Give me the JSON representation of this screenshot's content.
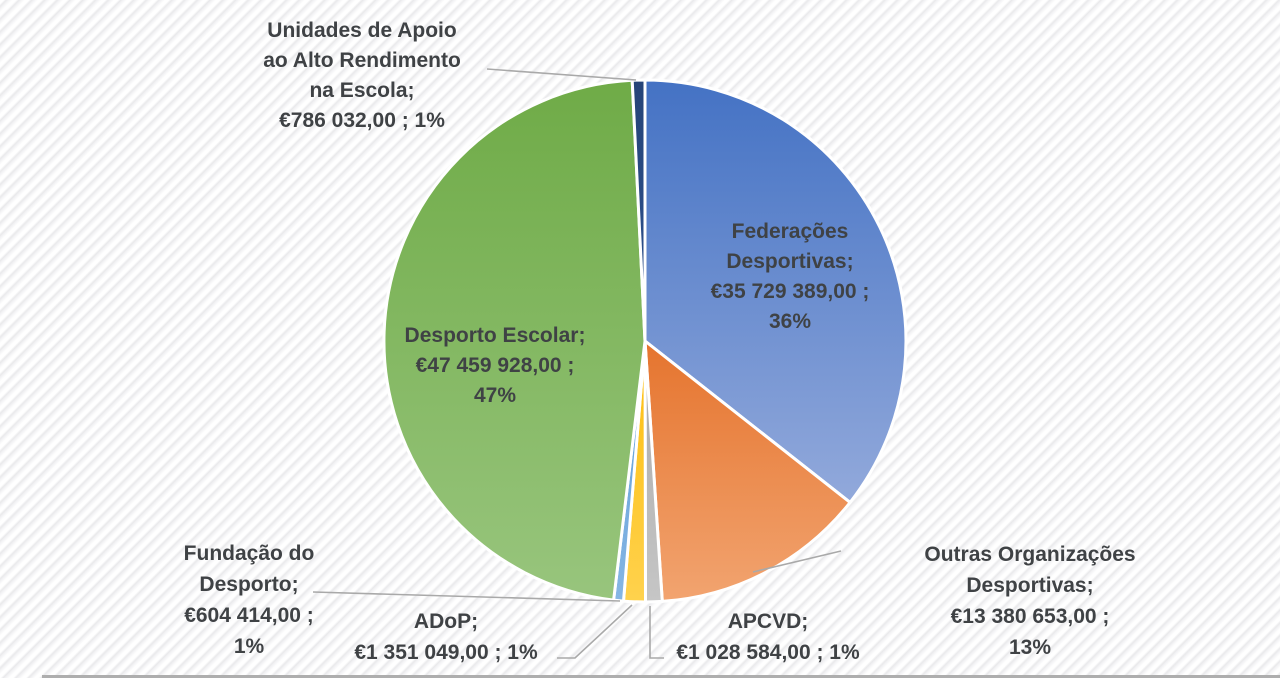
{
  "background": {
    "pattern": "diagonal-hatch",
    "stripe_light": "#ffffff",
    "stripe_dark": "#e9e9eb"
  },
  "text_color": "#3f4245",
  "leader_line_color": "#a9a9a9",
  "chart_data": {
    "type": "pie",
    "title": "",
    "legend": "none",
    "start_angle_deg": 0,
    "direction": "clockwise",
    "slice_separator_color": "#ffffff",
    "slices": [
      {
        "slug": "federacoes-desportivas",
        "name": "Federações Desportivas",
        "value": 35729389,
        "value_label": "€35 729 389,00",
        "pct": 36,
        "pct_label": "36%",
        "label_placement": "inside",
        "label_lines": [
          "Federações",
          "Desportivas;",
          "€35 729 389,00 ;",
          "36%"
        ],
        "color": "#4472c4",
        "color_light": "#92a9db"
      },
      {
        "slug": "outras-organizacoes-desportivas",
        "name": "Outras Organizações Desportivas",
        "value": 13380653,
        "value_label": "€13 380 653,00",
        "pct": 13,
        "pct_label": "13%",
        "label_placement": "outside",
        "label_lines": [
          "Outras Organizações",
          "Desportivas;",
          "€13 380 653,00 ;",
          "13%"
        ],
        "color": "#e5742e",
        "color_light": "#f2a470"
      },
      {
        "slug": "apcvd",
        "name": "APCVD",
        "value": 1028584,
        "value_label": "€1 028 584,00",
        "pct": 1,
        "pct_label": "1%",
        "label_placement": "outside",
        "label_lines": [
          "APCVD;",
          "€1 028 584,00 ; 1%"
        ],
        "color": "#a8a8a8",
        "color_light": "#c6c6c6"
      },
      {
        "slug": "adop",
        "name": "ADoP",
        "value": 1351049,
        "value_label": "€1 351 049,00",
        "pct": 1,
        "pct_label": "1%",
        "label_placement": "outside",
        "label_lines": [
          "ADoP;",
          "€1 351 049,00 ; 1%"
        ],
        "color": "#fdbd0e",
        "color_light": "#ffd24d"
      },
      {
        "slug": "fundacao-do-desporto",
        "name": "Fundação do Desporto",
        "value": 604414,
        "value_label": "€604 414,00",
        "pct": 1,
        "pct_label": "1%",
        "label_placement": "outside",
        "label_lines": [
          "Fundação do",
          "Desporto;",
          "€604 414,00 ;",
          "1%"
        ],
        "color": "#5b9bd5",
        "color_light": "#86b6e4"
      },
      {
        "slug": "desporto-escolar",
        "name": "Desporto Escolar",
        "value": 47459928,
        "value_label": "€47 459 928,00",
        "pct": 47,
        "pct_label": "47%",
        "label_placement": "inside",
        "label_lines": [
          "Desporto Escolar;",
          "€47 459 928,00 ;",
          "47%"
        ],
        "color": "#6fab47",
        "color_light": "#98c57d"
      },
      {
        "slug": "unidades-apoio-alto-rendimento-escola",
        "name": "Unidades de Apoio ao Alto Rendimento na Escola",
        "value": 786032,
        "value_label": "€786 032,00",
        "pct": 1,
        "pct_label": "1%",
        "label_placement": "outside",
        "label_lines": [
          "Unidades de Apoio",
          "ao Alto Rendimento",
          "na Escola;",
          "€786 032,00 ; 1%"
        ],
        "color": "#264478",
        "color_light": "#2e5290"
      }
    ]
  }
}
